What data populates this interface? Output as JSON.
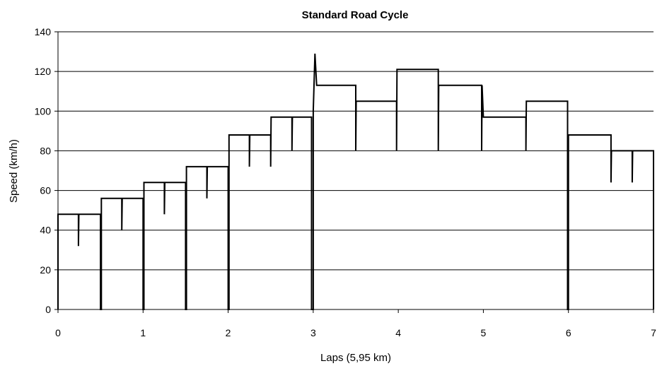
{
  "chart_data": {
    "type": "line",
    "title": "Standard Road Cycle",
    "xlabel": "Laps (5,95 km)",
    "ylabel": "Speed (km/h)",
    "xlim": [
      0,
      7
    ],
    "ylim": [
      0,
      140
    ],
    "x_ticks": [
      "0",
      "1",
      "2",
      "3",
      "4",
      "5",
      "6",
      "7"
    ],
    "y_ticks": [
      "0",
      "20",
      "40",
      "60",
      "80",
      "100",
      "120",
      "140"
    ],
    "grid": "horizontal",
    "legend": "none",
    "series": [
      {
        "points": [
          [
            0,
            0
          ],
          [
            0,
            48
          ],
          [
            0.24,
            48
          ],
          [
            0.24,
            32
          ],
          [
            0.245,
            48
          ],
          [
            0.5,
            48
          ],
          [
            0.5,
            0
          ],
          [
            0.51,
            0
          ],
          [
            0.51,
            56
          ],
          [
            0.75,
            56
          ],
          [
            0.75,
            40
          ],
          [
            0.755,
            56
          ],
          [
            1.0,
            56
          ],
          [
            1.0,
            0
          ],
          [
            1.01,
            0
          ],
          [
            1.01,
            64
          ],
          [
            1.25,
            64
          ],
          [
            1.25,
            48
          ],
          [
            1.255,
            64
          ],
          [
            1.5,
            64
          ],
          [
            1.5,
            0
          ],
          [
            1.51,
            0
          ],
          [
            1.51,
            72
          ],
          [
            1.75,
            72
          ],
          [
            1.75,
            56
          ],
          [
            1.755,
            72
          ],
          [
            2.0,
            72
          ],
          [
            2.0,
            0
          ],
          [
            2.01,
            0
          ],
          [
            2.01,
            88
          ],
          [
            2.25,
            88
          ],
          [
            2.25,
            72
          ],
          [
            2.255,
            88
          ],
          [
            2.5,
            88
          ],
          [
            2.5,
            72
          ],
          [
            2.505,
            97
          ],
          [
            2.75,
            97
          ],
          [
            2.75,
            80
          ],
          [
            2.755,
            97
          ],
          [
            2.98,
            97
          ],
          [
            2.98,
            0
          ],
          [
            3.0,
            0
          ],
          [
            3.0,
            100
          ],
          [
            3.02,
            129
          ],
          [
            3.04,
            113
          ],
          [
            3.5,
            113
          ],
          [
            3.5,
            80
          ],
          [
            3.505,
            105
          ],
          [
            3.98,
            105
          ],
          [
            3.98,
            80
          ],
          [
            3.985,
            121
          ],
          [
            4.47,
            121
          ],
          [
            4.47,
            80
          ],
          [
            4.475,
            113
          ],
          [
            4.98,
            113
          ],
          [
            4.98,
            80
          ],
          [
            4.985,
            113
          ],
          [
            5.0,
            97
          ],
          [
            5.5,
            97
          ],
          [
            5.5,
            80
          ],
          [
            5.505,
            105
          ],
          [
            5.99,
            105
          ],
          [
            5.99,
            0
          ],
          [
            6.0,
            0
          ],
          [
            6.0,
            88
          ],
          [
            6.5,
            88
          ],
          [
            6.5,
            64
          ],
          [
            6.505,
            80
          ],
          [
            6.75,
            80
          ],
          [
            6.75,
            64
          ],
          [
            6.755,
            80
          ],
          [
            7.0,
            80
          ],
          [
            7.0,
            0
          ]
        ]
      }
    ]
  }
}
